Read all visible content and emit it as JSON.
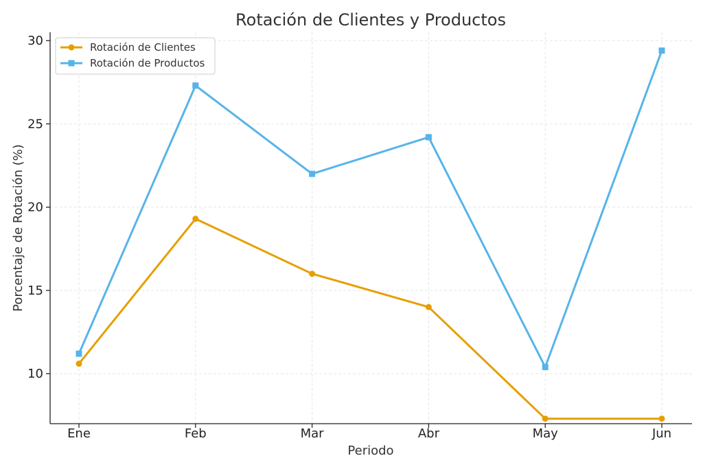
{
  "chart_data": {
    "type": "line",
    "title": "Rotación de Clientes y Productos",
    "xlabel": "Periodo",
    "ylabel": "Porcentaje de Rotación (%)",
    "categories": [
      "Ene",
      "Feb",
      "Mar",
      "Abr",
      "May",
      "Jun"
    ],
    "ylim": [
      7.0,
      30.5
    ],
    "yticks": [
      10,
      15,
      20,
      25,
      30
    ],
    "grid": true,
    "legend_position": "top-left",
    "series": [
      {
        "name": "Rotación de Clientes",
        "values": [
          10.6,
          19.3,
          16.0,
          14.0,
          7.3,
          7.3
        ],
        "color": "#E69F00",
        "marker": "circle"
      },
      {
        "name": "Rotación de Productos",
        "values": [
          11.2,
          27.3,
          22.0,
          24.2,
          10.4,
          29.4
        ],
        "color": "#56B4E9",
        "marker": "square"
      }
    ]
  }
}
